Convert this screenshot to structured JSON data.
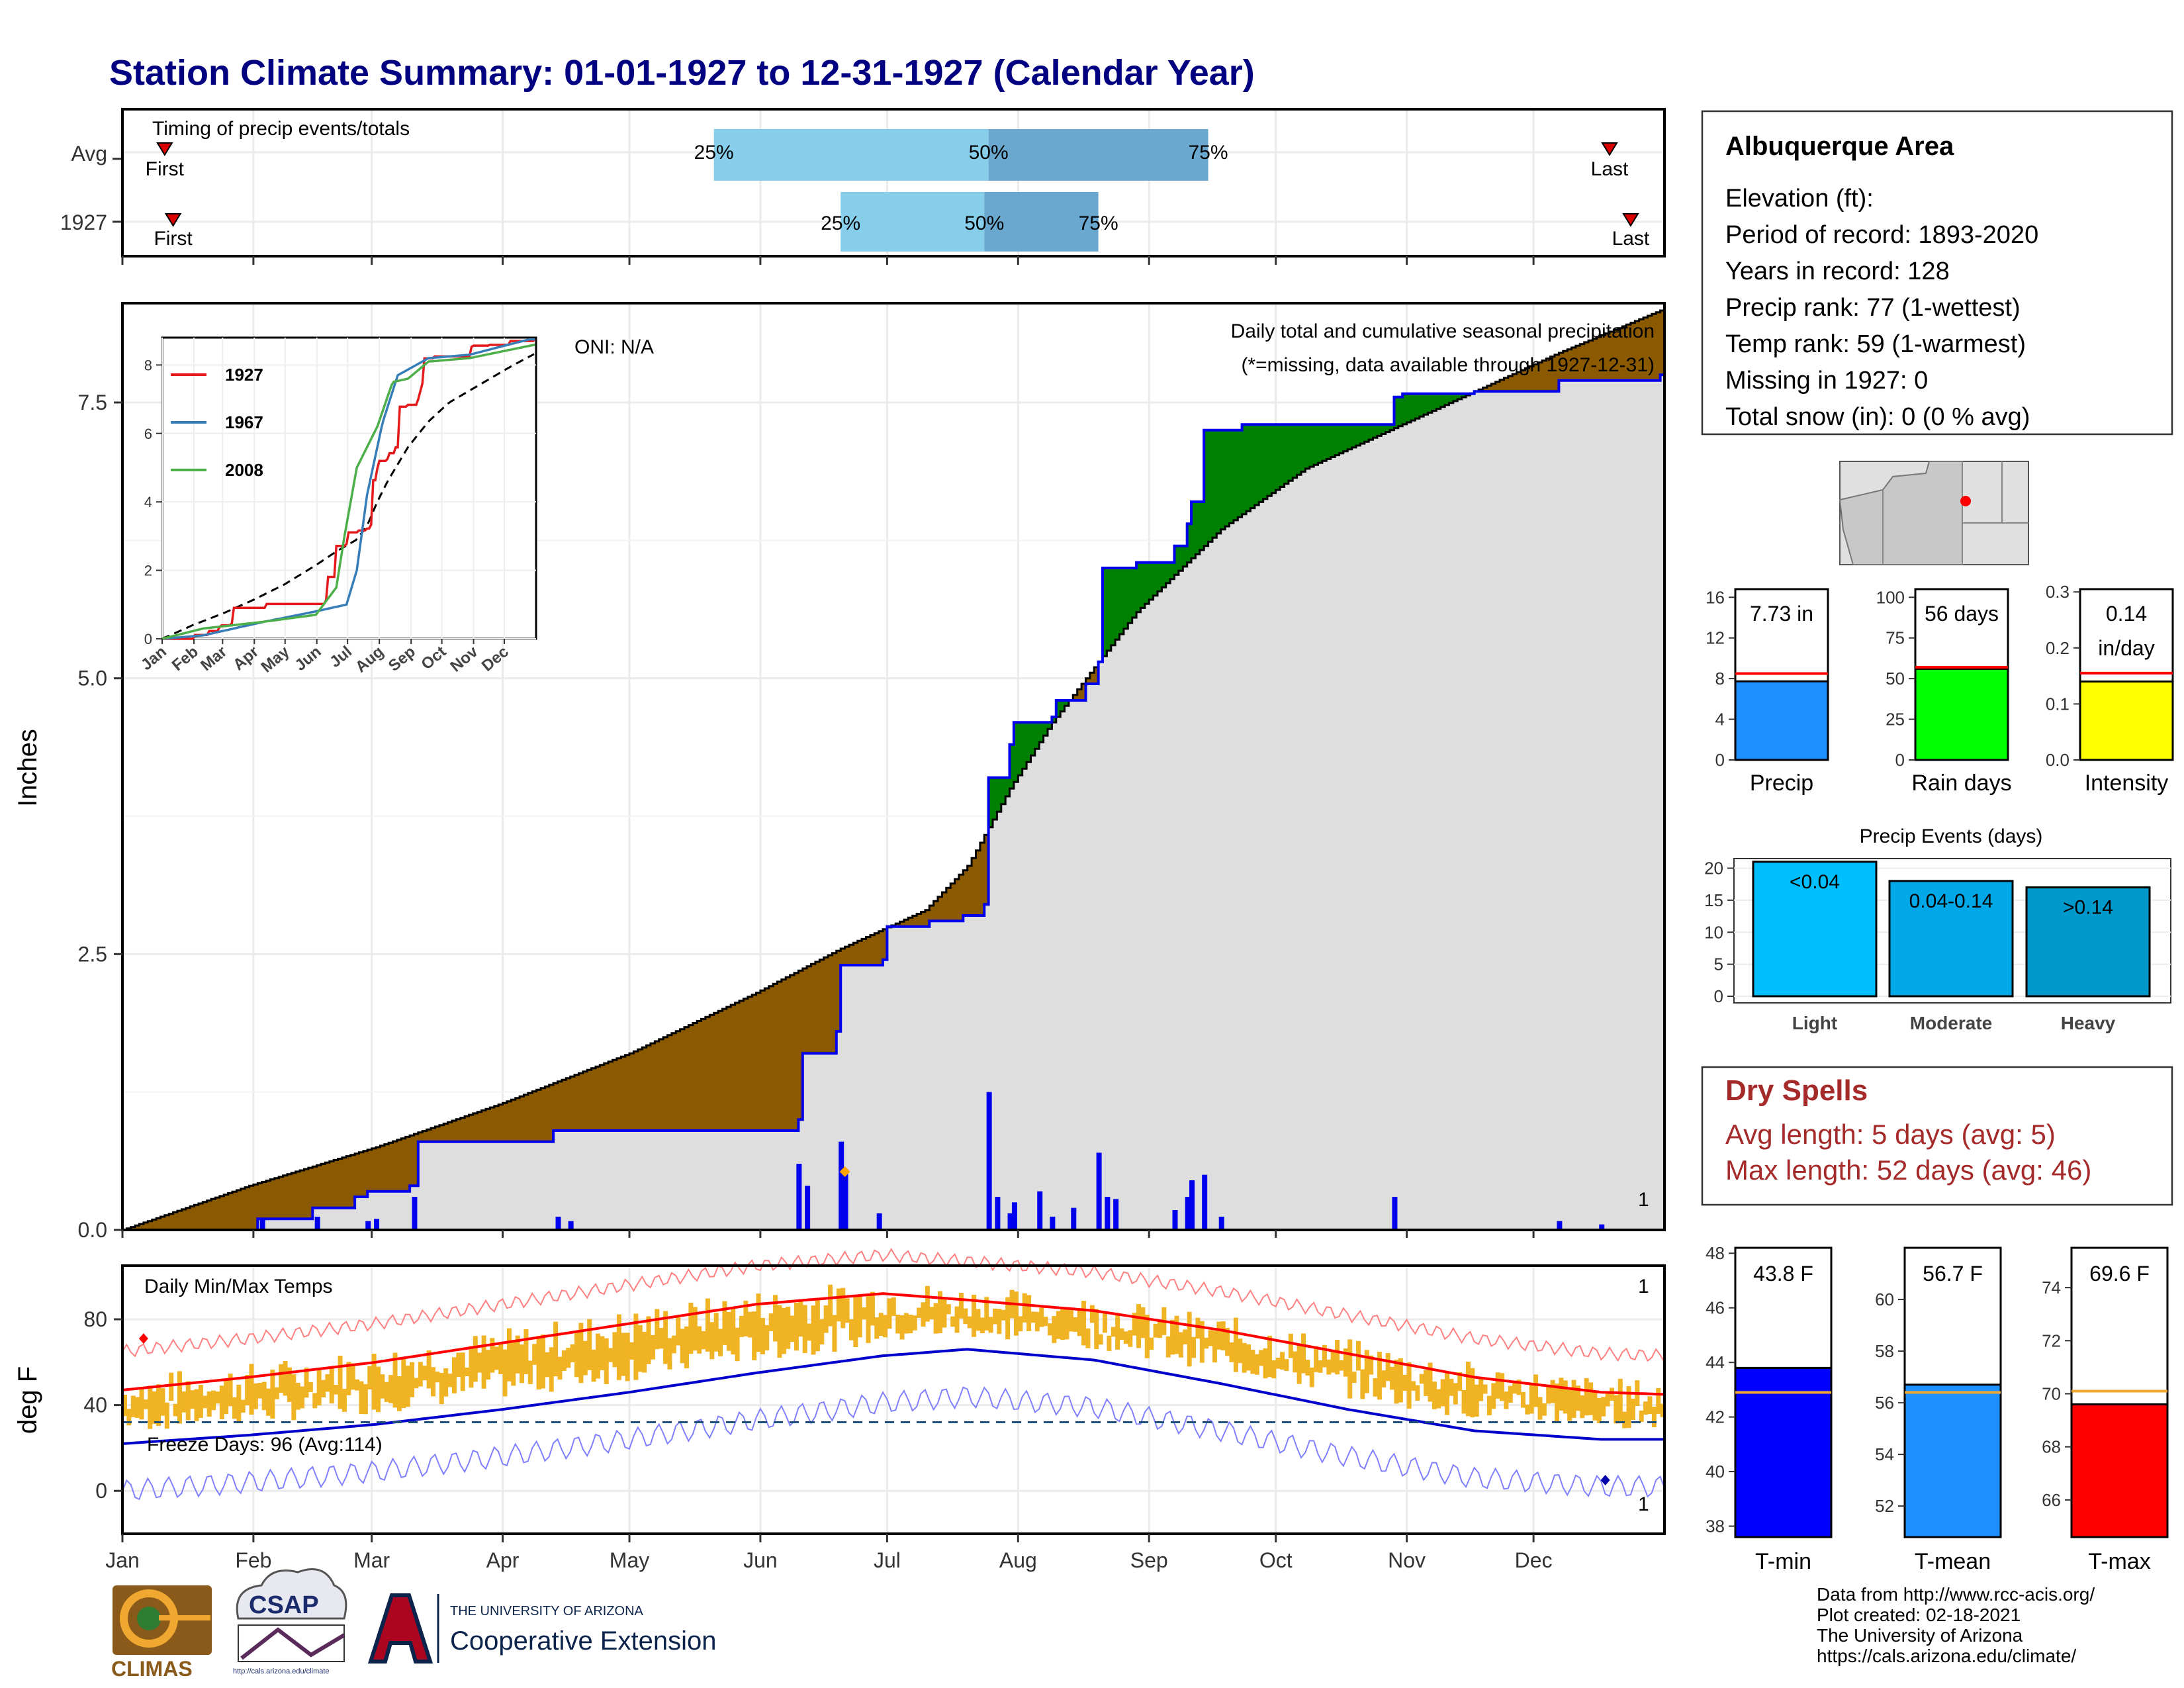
{
  "title": "Station Climate Summary: 01-01-1927 to 12-31-1927 (Calendar Year)",
  "months": [
    "Jan",
    "Feb",
    "Mar",
    "Apr",
    "May",
    "Jun",
    "Jul",
    "Aug",
    "Sep",
    "Oct",
    "Nov",
    "Dec"
  ],
  "timing": {
    "label": "Timing of precip events/totals",
    "rows": [
      {
        "name": "Avg",
        "first_label": "First",
        "last_label": "Last",
        "first_doy": 10,
        "last_doy": 352,
        "q25_doy": 140,
        "q50_doy": 205,
        "q75_doy": 257,
        "labels": [
          "25%",
          "50%",
          "75%"
        ]
      },
      {
        "name": "1927",
        "first_label": "First",
        "last_label": "Last",
        "first_doy": 12,
        "last_doy": 357,
        "q25_doy": 170,
        "q50_doy": 204,
        "q75_doy": 231,
        "labels": [
          "25%",
          "50%",
          "75%"
        ]
      }
    ]
  },
  "precip_panel": {
    "title": "Daily total and cumulative seasonal precipitation",
    "note": "(*=missing, data available through 1927-12-31)",
    "oni": "ONI: N/A",
    "ylabel": "Inches",
    "yticks": [
      "0.0",
      "2.5",
      "5.0",
      "7.5"
    ],
    "corner_label": "1",
    "missing_marker_label": "1"
  },
  "inset": {
    "yticks": [
      "0",
      "2",
      "4",
      "6",
      "8"
    ],
    "xticks": [
      "Jan",
      "Feb",
      "Mar",
      "Apr",
      "May",
      "Jun",
      "Jul",
      "Aug",
      "Sep",
      "Oct",
      "Nov",
      "Dec"
    ],
    "legend": [
      {
        "name": "1927",
        "color": "#e41a1c"
      },
      {
        "name": "1967",
        "color": "#377eb8"
      },
      {
        "name": "2008",
        "color": "#4daf4a"
      }
    ]
  },
  "temp_panel": {
    "title": "Daily Min/Max Temps",
    "ylabel": "deg F",
    "yticks": [
      "0",
      "40",
      "80"
    ],
    "freeze_label": "Freeze Days: 96 (Avg:114)",
    "corner_label_top": "1",
    "corner_label_bottom": "1"
  },
  "station": {
    "name": "Albuquerque Area",
    "lines": [
      "Elevation (ft):",
      "Period of record: 1893-2020",
      "Years in record: 128",
      "Precip rank: 77 (1-wettest)",
      "Temp rank: 59 (1-warmest)",
      "Missing in 1927: 0",
      "Total snow (in): 0 (0 % avg)"
    ]
  },
  "mini_bars": [
    {
      "name": "Precip",
      "value_label": "7.73 in",
      "value": 7.73,
      "avg": 8.5,
      "ymax": 16.8,
      "ticks": [
        "0",
        "4",
        "8",
        "12",
        "16"
      ],
      "tick_vals": [
        0,
        4,
        8,
        12,
        16
      ],
      "color": "#1e90ff"
    },
    {
      "name": "Rain days",
      "value_label": "56 days",
      "value": 56,
      "avg": 57,
      "ymax": 105,
      "ticks": [
        "0",
        "25",
        "50",
        "75",
        "100"
      ],
      "tick_vals": [
        0,
        25,
        50,
        75,
        100
      ],
      "color": "#00ff00"
    },
    {
      "name": "Intensity",
      "value_label": "0.14",
      "value_label2": "in/day",
      "value": 0.14,
      "avg": 0.155,
      "ymax": 0.305,
      "ticks": [
        "0.0",
        "0.1",
        "0.2",
        "0.3"
      ],
      "tick_vals": [
        0,
        0.1,
        0.2,
        0.3
      ],
      "color": "#ffff00"
    }
  ],
  "events": {
    "title": "Precip Events (days)",
    "yticks": [
      "0",
      "5",
      "10",
      "15",
      "20"
    ],
    "ytick_vals": [
      0,
      5,
      10,
      15,
      20
    ],
    "ymax": 21.5,
    "bars": [
      {
        "name": "Light",
        "label": "<0.04",
        "value": 21,
        "color": "#00bfff"
      },
      {
        "name": "Moderate",
        "label": "0.04-0.14",
        "value": 18,
        "color": "#00a8e8"
      },
      {
        "name": "Heavy",
        "label": ">0.14",
        "value": 17,
        "color": "#0099cc"
      }
    ]
  },
  "dry_spells": {
    "title": "Dry Spells",
    "lines": [
      "Avg length: 5 days (avg: 5)",
      "Max length: 52 days (avg: 46)"
    ]
  },
  "temp_bars": [
    {
      "name": "T-min",
      "value_label": "43.8 F",
      "value": 43.8,
      "avg": 42.9,
      "ymin": 37.6,
      "ymax": 48.2,
      "ticks": [
        "38",
        "40",
        "42",
        "44",
        "46",
        "48"
      ],
      "tick_vals": [
        38,
        40,
        42,
        44,
        46,
        48
      ],
      "color": "#0000ff"
    },
    {
      "name": "T-mean",
      "value_label": "56.7 F",
      "value": 56.7,
      "avg": 56.4,
      "ymin": 50.8,
      "ymax": 62.0,
      "ticks": [
        "52",
        "54",
        "56",
        "58",
        "60"
      ],
      "tick_vals": [
        52,
        54,
        56,
        58,
        60
      ],
      "color": "#1e90ff"
    },
    {
      "name": "T-max",
      "value_label": "69.6 F",
      "value": 69.6,
      "avg": 70.1,
      "ymin": 64.6,
      "ymax": 75.5,
      "ticks": [
        "66",
        "68",
        "70",
        "72",
        "74"
      ],
      "tick_vals": [
        66,
        68,
        70,
        72,
        74
      ],
      "color": "#ff0000"
    }
  ],
  "credits": [
    "Data from http://www.rcc-acis.org/",
    "Plot created: 02-18-2021",
    "The University of Arizona",
    "https://cals.arizona.edu/climate/"
  ],
  "logos": {
    "climas": "CLIMAS",
    "csap": "CSAP",
    "csap_url": "http://cals.arizona.edu/climate",
    "ua_top": "THE UNIVERSITY OF ARIZONA",
    "ua_bottom": "Cooperative Extension"
  },
  "chart_data": {
    "type": "area",
    "xlabel": "",
    "ylabel": "Inches",
    "ylim": [
      0,
      8.4
    ],
    "cumulative_avg": {
      "doy": [
        0,
        30,
        60,
        90,
        120,
        150,
        170,
        190,
        200,
        210,
        220,
        240,
        260,
        280,
        300,
        320,
        340,
        365
      ],
      "inches": [
        0,
        0.4,
        0.75,
        1.15,
        1.6,
        2.15,
        2.55,
        2.9,
        3.3,
        4.0,
        4.6,
        5.6,
        6.35,
        6.9,
        7.25,
        7.6,
        7.95,
        8.35
      ]
    },
    "cumulative_1927": {
      "doy": [
        0,
        30,
        32,
        45,
        55,
        58,
        68,
        70,
        100,
        102,
        160,
        161,
        169,
        170,
        180,
        181,
        190,
        191,
        199,
        204,
        205,
        210,
        211,
        220,
        221,
        228,
        231,
        232,
        240,
        241,
        249,
        252,
        253,
        256,
        265,
        270,
        271,
        300,
        301,
        303,
        320,
        340,
        364
      ],
      "inches": [
        0,
        0.0,
        0.1,
        0.2,
        0.3,
        0.35,
        0.4,
        0.8,
        0.8,
        0.9,
        1.0,
        1.6,
        1.8,
        2.4,
        2.45,
        2.75,
        2.75,
        2.8,
        2.85,
        2.95,
        4.1,
        4.4,
        4.6,
        4.65,
        4.8,
        4.95,
        5.15,
        6.0,
        6.05,
        6.05,
        6.2,
        6.4,
        6.6,
        7.25,
        7.3,
        7.3,
        7.3,
        7.3,
        7.55,
        7.58,
        7.6,
        7.7,
        7.75
      ]
    },
    "daily_precip": {
      "doy": [
        33,
        46,
        58,
        60,
        69,
        103,
        106,
        160,
        162,
        170,
        171,
        179,
        205,
        207,
        210,
        211,
        217,
        220,
        225,
        231,
        233,
        235,
        249,
        252,
        253,
        256,
        260,
        301,
        340,
        350
      ],
      "inches": [
        0.1,
        0.12,
        0.08,
        0.1,
        0.3,
        0.12,
        0.08,
        0.6,
        0.4,
        0.8,
        0.55,
        0.15,
        1.25,
        0.3,
        0.15,
        0.25,
        0.35,
        0.12,
        0.2,
        0.7,
        0.3,
        0.28,
        0.18,
        0.3,
        0.45,
        0.5,
        0.12,
        0.3,
        0.08,
        0.05
      ]
    },
    "temps": {
      "ylim": [
        -20,
        105
      ],
      "avg_max": {
        "doy": [
          0,
          30,
          60,
          90,
          120,
          150,
          180,
          200,
          230,
          260,
          290,
          320,
          350,
          365
        ],
        "degF": [
          47,
          53,
          60,
          69,
          78,
          87,
          92,
          89,
          84,
          75,
          64,
          53,
          46,
          45
        ]
      },
      "avg_min": {
        "doy": [
          0,
          30,
          60,
          90,
          120,
          150,
          180,
          200,
          230,
          260,
          290,
          320,
          350,
          365
        ],
        "degF": [
          22,
          26,
          31,
          38,
          46,
          55,
          63,
          66,
          61,
          50,
          38,
          28,
          24,
          24
        ]
      },
      "freeze_line": 32
    }
  }
}
